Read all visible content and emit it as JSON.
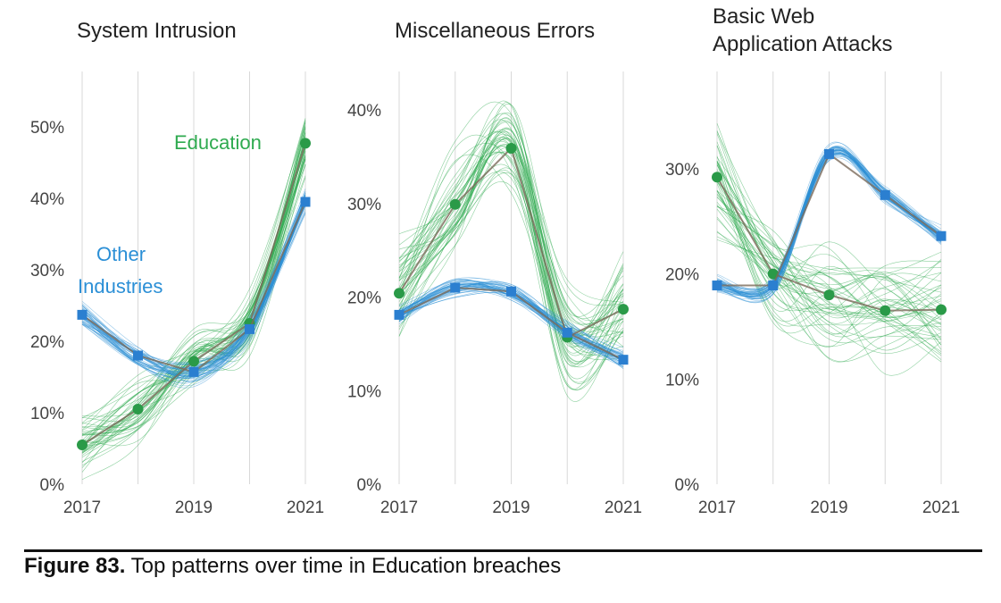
{
  "chart_data": [
    {
      "type": "line",
      "title": "System Intrusion",
      "categories": [
        2017,
        2018,
        2019,
        2020,
        2021
      ],
      "x_tick_labels": [
        "2017",
        "2019",
        "2021"
      ],
      "y_tick_labels": [
        "0%",
        "10%",
        "20%",
        "30%",
        "40%",
        "50%"
      ],
      "ylim": [
        0,
        55
      ],
      "grid": "vertical",
      "series": [
        {
          "name": "Education",
          "color": "#2eaa4f",
          "values": [
            5.5,
            10.5,
            17.2,
            22.5,
            47.7
          ]
        },
        {
          "name": "Other Industries",
          "color": "#2b8fd6",
          "values": [
            23.7,
            18.0,
            15.7,
            21.7,
            39.5
          ]
        }
      ],
      "annotations": [
        "Education",
        "Other",
        "Industries"
      ]
    },
    {
      "type": "line",
      "title": "Miscellaneous Errors",
      "categories": [
        2017,
        2018,
        2019,
        2020,
        2021
      ],
      "x_tick_labels": [
        "2017",
        "2019",
        "2021"
      ],
      "y_tick_labels": [
        "0%",
        "10%",
        "20%",
        "30%",
        "40%"
      ],
      "ylim": [
        0,
        43
      ],
      "grid": "vertical",
      "series": [
        {
          "name": "Education",
          "color": "#2eaa4f",
          "values": [
            20.4,
            29.9,
            35.9,
            15.7,
            18.7
          ]
        },
        {
          "name": "Other Industries",
          "color": "#2b8fd6",
          "values": [
            18.1,
            21.0,
            20.6,
            16.2,
            13.3
          ]
        }
      ]
    },
    {
      "type": "line",
      "title": "Basic Web\nApplication Attacks",
      "title_lines": [
        "Basic Web",
        "Application Attacks"
      ],
      "categories": [
        2017,
        2018,
        2019,
        2020,
        2021
      ],
      "x_tick_labels": [
        "2017",
        "2019",
        "2021"
      ],
      "y_tick_labels": [
        "0%",
        "10%",
        "20%",
        "30%"
      ],
      "ylim": [
        0,
        39
      ],
      "grid": "vertical",
      "series": [
        {
          "name": "Education",
          "color": "#2eaa4f",
          "values": [
            29.2,
            20.0,
            18.0,
            16.5,
            16.6
          ]
        },
        {
          "name": "Other Industries",
          "color": "#2b8fd6",
          "values": [
            18.9,
            18.9,
            31.4,
            27.5,
            23.6
          ]
        }
      ]
    }
  ],
  "caption": {
    "label": "Figure 83.",
    "text": " Top patterns over time in Education breaches"
  },
  "mean_line_color": "#7a6a5a"
}
